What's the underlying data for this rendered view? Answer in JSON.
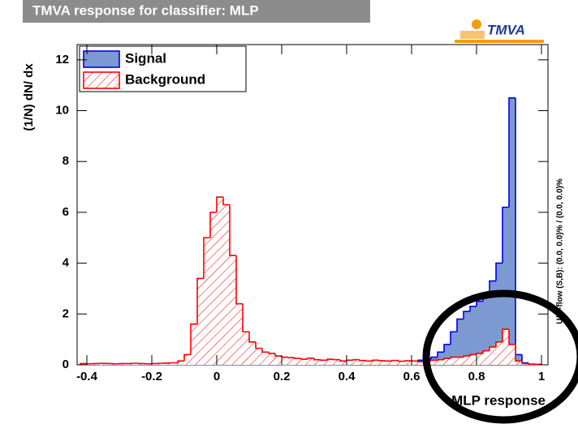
{
  "chart_data": {
    "type": "histogram",
    "title": "TMVA response for classifier: MLP",
    "logo": "TMVA",
    "xlabel": "MLP response",
    "ylabel": "(1/N) dN/ dx",
    "annotation": "U/O-flow (S,B): (0.0, 0.0)% / (0.0, 0.0)%",
    "xlim": [
      -0.43,
      1.02
    ],
    "ylim": [
      0,
      12.6
    ],
    "xticks": [
      -0.4,
      -0.2,
      0,
      0.2,
      0.4,
      0.6,
      0.8,
      1
    ],
    "yticks": [
      0,
      2,
      4,
      6,
      8,
      10,
      12
    ],
    "legend": "upper left",
    "bins": [
      -0.42,
      -0.4,
      -0.38,
      -0.36,
      -0.34,
      -0.32,
      -0.3,
      -0.28,
      -0.26,
      -0.24,
      -0.22,
      -0.2,
      -0.18,
      -0.16,
      -0.14,
      -0.12,
      -0.1,
      -0.08,
      -0.06,
      -0.04,
      -0.02,
      0,
      0.02,
      0.04,
      0.06,
      0.08,
      0.1,
      0.12,
      0.14,
      0.16,
      0.18,
      0.2,
      0.22,
      0.24,
      0.26,
      0.28,
      0.3,
      0.32,
      0.34,
      0.36,
      0.38,
      0.4,
      0.42,
      0.44,
      0.46,
      0.48,
      0.5,
      0.52,
      0.54,
      0.56,
      0.58,
      0.6,
      0.62,
      0.64,
      0.66,
      0.68,
      0.7,
      0.72,
      0.74,
      0.76,
      0.78,
      0.8,
      0.82,
      0.84,
      0.86,
      0.88,
      0.9,
      0.92,
      0.94,
      0.96,
      0.98,
      1.0
    ],
    "series": [
      {
        "name": "Signal",
        "color": "#0000ee",
        "fill": "#7d99d1",
        "hatch": false,
        "values": [
          0.01,
          0.01,
          0.01,
          0.01,
          0.01,
          0.01,
          0.01,
          0.01,
          0.01,
          0.01,
          0.01,
          0.01,
          0.01,
          0.01,
          0.01,
          0.01,
          0.01,
          0.01,
          0.01,
          0.01,
          0.01,
          0.01,
          0.01,
          0.01,
          0.01,
          0.01,
          0.01,
          0.01,
          0.01,
          0.01,
          0.01,
          0.01,
          0.01,
          0.01,
          0.01,
          0.01,
          0.01,
          0.01,
          0.01,
          0.01,
          0.02,
          0.02,
          0.03,
          0.03,
          0.04,
          0.05,
          0.05,
          0.06,
          0.08,
          0.1,
          0.12,
          0.15,
          0.18,
          0.22,
          0.3,
          0.5,
          0.8,
          1.3,
          1.8,
          2.1,
          2.3,
          2.5,
          2.8,
          3.3,
          4.0,
          6.2,
          10.5,
          0.4,
          0.08,
          0.02,
          0.01
        ]
      },
      {
        "name": "Background",
        "color": "#ff0000",
        "fill": "#ffffff",
        "hatch": true,
        "values": [
          0.05,
          0.04,
          0.05,
          0.06,
          0.05,
          0.04,
          0.05,
          0.05,
          0.06,
          0.05,
          0.04,
          0.05,
          0.06,
          0.07,
          0.08,
          0.15,
          0.4,
          1.6,
          3.4,
          5.0,
          6.0,
          6.6,
          6.3,
          4.3,
          2.4,
          1.3,
          0.9,
          0.65,
          0.5,
          0.45,
          0.35,
          0.3,
          0.28,
          0.25,
          0.22,
          0.26,
          0.2,
          0.18,
          0.22,
          0.2,
          0.15,
          0.18,
          0.2,
          0.17,
          0.15,
          0.18,
          0.16,
          0.15,
          0.17,
          0.14,
          0.16,
          0.15,
          0.12,
          0.15,
          0.18,
          0.2,
          0.25,
          0.3,
          0.3,
          0.35,
          0.4,
          0.45,
          0.55,
          0.7,
          0.9,
          1.4,
          0.8,
          0.15,
          0.05,
          0.03,
          0.02
        ]
      }
    ]
  }
}
